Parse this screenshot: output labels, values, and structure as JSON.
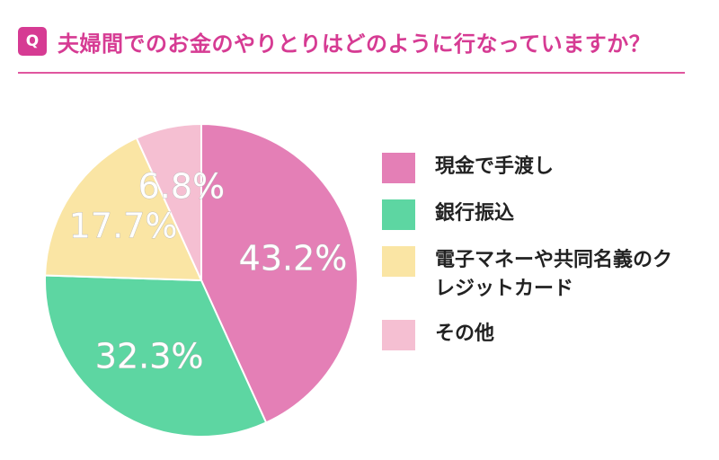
{
  "header": {
    "badge": "Q",
    "title": "夫婦間でのお金のやりとりはどのように行なっていますか？"
  },
  "colors": {
    "accent": "#d63b93",
    "rule": "#e0569f",
    "series": [
      "#e47fb6",
      "#5dd6a2",
      "#fae5a4",
      "#f5bfd2"
    ]
  },
  "chart_data": {
    "type": "pie",
    "title": "夫婦間でのお金のやりとりはどのように行なっていますか？",
    "labels": [
      "現金で手渡し",
      "銀行振込",
      "電子マネーや共同名義のクレジットカード",
      "その他"
    ],
    "values": [
      43.2,
      32.3,
      17.7,
      6.8
    ],
    "value_labels": [
      "43.2%",
      "32.3%",
      "17.7%",
      "6.8%"
    ],
    "legend_position": "right",
    "start": "top-clockwise"
  },
  "legend": [
    {
      "label": "現金で手渡し"
    },
    {
      "label": "銀行振込"
    },
    {
      "label": "電子マネーや共同名義のクレジットカード"
    },
    {
      "label": "その他"
    }
  ]
}
